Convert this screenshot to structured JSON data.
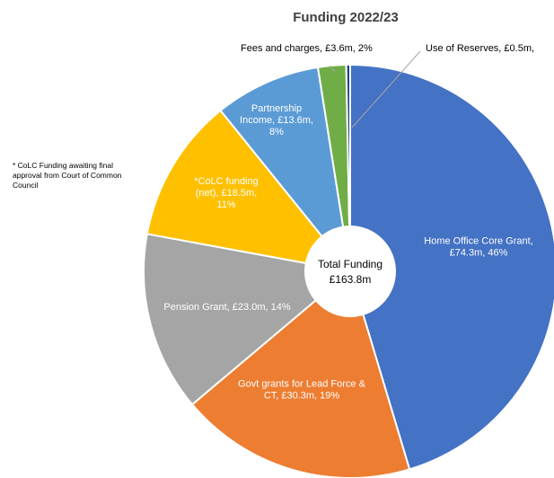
{
  "chart_data": {
    "type": "pie",
    "title": "Funding 2022/23",
    "donut_center": {
      "line1": "Total Funding",
      "line2": "£163.8m"
    },
    "slices": [
      {
        "label_lines": [
          "Home Office Core Grant,",
          "£74.3m, 46%"
        ],
        "value": 74.3,
        "percent": 46,
        "color": "#4472c4",
        "label_color": "#ffffff"
      },
      {
        "label_lines": [
          "Govt grants for Lead Force &",
          "CT, £30.3m, 19%"
        ],
        "value": 30.3,
        "percent": 19,
        "color": "#ed7d31",
        "label_color": "#ffffff"
      },
      {
        "label_lines": [
          "Pension Grant, £23.0m, 14%"
        ],
        "value": 23.0,
        "percent": 14,
        "color": "#a5a5a5",
        "label_color": "#ffffff"
      },
      {
        "label_lines": [
          "*CoLC funding",
          "(net), £18.5m,",
          "11%"
        ],
        "value": 18.5,
        "percent": 11,
        "color": "#ffc000",
        "label_color": "#ffffff"
      },
      {
        "label_lines": [
          "Partnership",
          "Income, £13.6m,",
          "8%"
        ],
        "value": 13.6,
        "percent": 8,
        "color": "#5b9bd5",
        "label_color": "#ffffff"
      },
      {
        "label_lines": [
          "Fees and charges, £3.6m, 2%"
        ],
        "value": 3.6,
        "percent": 2,
        "color": "#70ad47",
        "label_color": "#000000"
      },
      {
        "label_lines": [
          "Use of Reserves, £0.5m,"
        ],
        "value": 0.5,
        "percent": null,
        "color": "#264478",
        "label_color": "#000000"
      }
    ],
    "note_lines": [
      "* CoLC Funding awaiting final",
      "approval from Court of Common",
      "Council"
    ]
  }
}
